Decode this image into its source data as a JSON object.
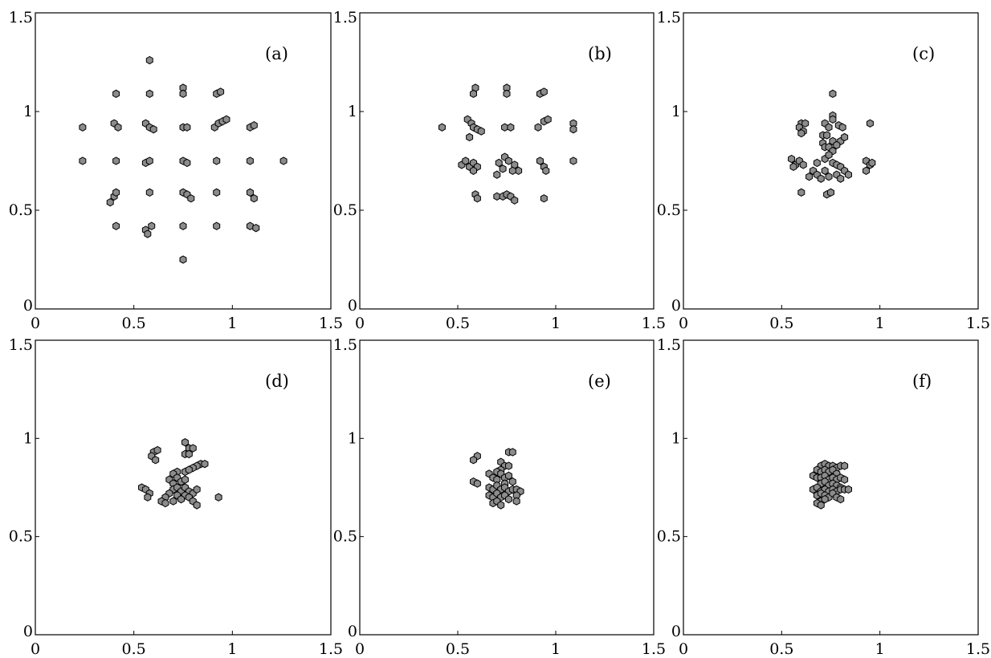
{
  "colors": {
    "marker_fill": "#8c8c8c",
    "marker_edge": "#000000",
    "frame": "#000000",
    "background": "#ffffff"
  },
  "chart_data": [
    {
      "type": "scatter",
      "panel_label": "(a)",
      "xlim": [
        0,
        1.5
      ],
      "ylim": [
        0,
        1.5
      ],
      "xticks": [
        "0",
        "0.5",
        "1",
        "1.5"
      ],
      "yticks": [
        "0",
        "0.5",
        "1",
        "1.5"
      ],
      "grid": false,
      "points": [
        [
          0.58,
          1.26
        ],
        [
          0.41,
          1.09
        ],
        [
          0.58,
          1.09
        ],
        [
          0.75,
          1.12
        ],
        [
          0.75,
          1.09
        ],
        [
          0.92,
          1.09
        ],
        [
          0.94,
          1.1
        ],
        [
          0.24,
          0.92
        ],
        [
          0.4,
          0.94
        ],
        [
          0.42,
          0.92
        ],
        [
          0.56,
          0.94
        ],
        [
          0.58,
          0.92
        ],
        [
          0.6,
          0.91
        ],
        [
          0.75,
          0.92
        ],
        [
          0.77,
          0.92
        ],
        [
          0.91,
          0.92
        ],
        [
          0.93,
          0.94
        ],
        [
          0.95,
          0.95
        ],
        [
          0.97,
          0.96
        ],
        [
          1.09,
          0.92
        ],
        [
          1.11,
          0.93
        ],
        [
          0.24,
          0.75
        ],
        [
          0.41,
          0.75
        ],
        [
          0.56,
          0.74
        ],
        [
          0.58,
          0.75
        ],
        [
          0.75,
          0.75
        ],
        [
          0.77,
          0.74
        ],
        [
          0.92,
          0.75
        ],
        [
          1.09,
          0.75
        ],
        [
          1.26,
          0.75
        ],
        [
          0.38,
          0.54
        ],
        [
          0.4,
          0.57
        ],
        [
          0.41,
          0.59
        ],
        [
          0.58,
          0.59
        ],
        [
          0.75,
          0.59
        ],
        [
          0.77,
          0.58
        ],
        [
          0.79,
          0.56
        ],
        [
          0.92,
          0.59
        ],
        [
          1.09,
          0.59
        ],
        [
          1.11,
          0.56
        ],
        [
          0.41,
          0.42
        ],
        [
          0.56,
          0.4
        ],
        [
          0.57,
          0.38
        ],
        [
          0.59,
          0.42
        ],
        [
          0.75,
          0.42
        ],
        [
          0.92,
          0.42
        ],
        [
          1.09,
          0.42
        ],
        [
          1.12,
          0.41
        ],
        [
          0.75,
          0.25
        ]
      ]
    },
    {
      "type": "scatter",
      "panel_label": "(b)",
      "xlim": [
        0,
        1.5
      ],
      "ylim": [
        0,
        1.5
      ],
      "xticks": [
        "0",
        "0.5",
        "1",
        "1.5"
      ],
      "yticks": [
        "0",
        "0.5",
        "1",
        "1.5"
      ],
      "grid": false,
      "points": [
        [
          0.59,
          1.12
        ],
        [
          0.58,
          1.09
        ],
        [
          0.75,
          1.12
        ],
        [
          0.75,
          1.09
        ],
        [
          0.92,
          1.09
        ],
        [
          0.94,
          1.1
        ],
        [
          0.42,
          0.92
        ],
        [
          0.55,
          0.96
        ],
        [
          0.57,
          0.94
        ],
        [
          0.58,
          0.92
        ],
        [
          0.6,
          0.91
        ],
        [
          0.62,
          0.9
        ],
        [
          0.56,
          0.87
        ],
        [
          0.74,
          0.92
        ],
        [
          0.77,
          0.92
        ],
        [
          0.91,
          0.92
        ],
        [
          0.94,
          0.95
        ],
        [
          0.96,
          0.96
        ],
        [
          1.09,
          0.94
        ],
        [
          1.09,
          0.91
        ],
        [
          0.52,
          0.73
        ],
        [
          0.54,
          0.75
        ],
        [
          0.56,
          0.72
        ],
        [
          0.58,
          0.74
        ],
        [
          0.6,
          0.72
        ],
        [
          0.58,
          0.7
        ],
        [
          0.71,
          0.74
        ],
        [
          0.74,
          0.77
        ],
        [
          0.76,
          0.75
        ],
        [
          0.79,
          0.73
        ],
        [
          0.81,
          0.7
        ],
        [
          0.78,
          0.7
        ],
        [
          0.73,
          0.71
        ],
        [
          0.7,
          0.68
        ],
        [
          0.92,
          0.75
        ],
        [
          0.94,
          0.72
        ],
        [
          0.95,
          0.7
        ],
        [
          1.09,
          0.75
        ],
        [
          0.59,
          0.58
        ],
        [
          0.6,
          0.56
        ],
        [
          0.7,
          0.57
        ],
        [
          0.73,
          0.57
        ],
        [
          0.75,
          0.58
        ],
        [
          0.77,
          0.57
        ],
        [
          0.79,
          0.55
        ],
        [
          0.94,
          0.56
        ]
      ]
    },
    {
      "type": "scatter",
      "panel_label": "(c)",
      "xlim": [
        0,
        1.5
      ],
      "ylim": [
        0,
        1.5
      ],
      "xticks": [
        "0",
        "0.5",
        "1",
        "1.5"
      ],
      "yticks": [
        "0",
        "0.5",
        "1",
        "1.5"
      ],
      "grid": false,
      "points": [
        [
          0.76,
          1.09
        ],
        [
          0.6,
          0.94
        ],
        [
          0.62,
          0.94
        ],
        [
          0.59,
          0.92
        ],
        [
          0.61,
          0.9
        ],
        [
          0.6,
          0.89
        ],
        [
          0.76,
          0.98
        ],
        [
          0.76,
          0.96
        ],
        [
          0.72,
          0.94
        ],
        [
          0.74,
          0.92
        ],
        [
          0.79,
          0.93
        ],
        [
          0.81,
          0.92
        ],
        [
          0.95,
          0.94
        ],
        [
          0.71,
          0.88
        ],
        [
          0.73,
          0.88
        ],
        [
          0.76,
          0.85
        ],
        [
          0.8,
          0.85
        ],
        [
          0.82,
          0.87
        ],
        [
          0.71,
          0.84
        ],
        [
          0.72,
          0.82
        ],
        [
          0.74,
          0.82
        ],
        [
          0.76,
          0.8
        ],
        [
          0.78,
          0.83
        ],
        [
          0.55,
          0.76
        ],
        [
          0.57,
          0.73
        ],
        [
          0.59,
          0.75
        ],
        [
          0.61,
          0.73
        ],
        [
          0.56,
          0.72
        ],
        [
          0.68,
          0.74
        ],
        [
          0.72,
          0.76
        ],
        [
          0.74,
          0.78
        ],
        [
          0.76,
          0.74
        ],
        [
          0.78,
          0.73
        ],
        [
          0.8,
          0.72
        ],
        [
          0.82,
          0.7
        ],
        [
          0.84,
          0.68
        ],
        [
          0.78,
          0.68
        ],
        [
          0.8,
          0.66
        ],
        [
          0.66,
          0.7
        ],
        [
          0.68,
          0.68
        ],
        [
          0.7,
          0.66
        ],
        [
          0.72,
          0.7
        ],
        [
          0.74,
          0.67
        ],
        [
          0.64,
          0.67
        ],
        [
          0.93,
          0.75
        ],
        [
          0.95,
          0.73
        ],
        [
          0.93,
          0.7
        ],
        [
          0.96,
          0.74
        ],
        [
          0.6,
          0.59
        ],
        [
          0.73,
          0.58
        ],
        [
          0.75,
          0.59
        ]
      ]
    },
    {
      "type": "scatter",
      "panel_label": "(d)",
      "xlim": [
        0,
        1.5
      ],
      "ylim": [
        0,
        1.5
      ],
      "xticks": [
        "0",
        "0.5",
        "1",
        "1.5"
      ],
      "yticks": [
        "0",
        "0.5",
        "1",
        "1.5"
      ],
      "grid": false,
      "points": [
        [
          0.76,
          0.98
        ],
        [
          0.78,
          0.95
        ],
        [
          0.8,
          0.95
        ],
        [
          0.6,
          0.93
        ],
        [
          0.62,
          0.94
        ],
        [
          0.59,
          0.91
        ],
        [
          0.61,
          0.89
        ],
        [
          0.76,
          0.92
        ],
        [
          0.78,
          0.92
        ],
        [
          0.84,
          0.87
        ],
        [
          0.86,
          0.87
        ],
        [
          0.82,
          0.86
        ],
        [
          0.8,
          0.85
        ],
        [
          0.72,
          0.83
        ],
        [
          0.7,
          0.82
        ],
        [
          0.76,
          0.83
        ],
        [
          0.78,
          0.84
        ],
        [
          0.54,
          0.75
        ],
        [
          0.56,
          0.74
        ],
        [
          0.58,
          0.72
        ],
        [
          0.57,
          0.7
        ],
        [
          0.68,
          0.79
        ],
        [
          0.7,
          0.77
        ],
        [
          0.72,
          0.8
        ],
        [
          0.74,
          0.78
        ],
        [
          0.76,
          0.79
        ],
        [
          0.7,
          0.74
        ],
        [
          0.72,
          0.75
        ],
        [
          0.74,
          0.73
        ],
        [
          0.76,
          0.75
        ],
        [
          0.78,
          0.73
        ],
        [
          0.8,
          0.72
        ],
        [
          0.82,
          0.74
        ],
        [
          0.76,
          0.71
        ],
        [
          0.78,
          0.7
        ],
        [
          0.68,
          0.72
        ],
        [
          0.66,
          0.7
        ],
        [
          0.64,
          0.68
        ],
        [
          0.66,
          0.67
        ],
        [
          0.7,
          0.68
        ],
        [
          0.72,
          0.71
        ],
        [
          0.74,
          0.69
        ],
        [
          0.8,
          0.68
        ],
        [
          0.82,
          0.66
        ],
        [
          0.93,
          0.7
        ]
      ]
    },
    {
      "type": "scatter",
      "panel_label": "(e)",
      "xlim": [
        0,
        1.5
      ],
      "ylim": [
        0,
        1.5
      ],
      "xticks": [
        "0",
        "0.5",
        "1",
        "1.5"
      ],
      "yticks": [
        "0",
        "0.5",
        "1",
        "1.5"
      ],
      "grid": false,
      "points": [
        [
          0.6,
          0.91
        ],
        [
          0.58,
          0.89
        ],
        [
          0.76,
          0.93
        ],
        [
          0.78,
          0.93
        ],
        [
          0.72,
          0.88
        ],
        [
          0.74,
          0.86
        ],
        [
          0.76,
          0.86
        ],
        [
          0.72,
          0.84
        ],
        [
          0.7,
          0.83
        ],
        [
          0.58,
          0.78
        ],
        [
          0.6,
          0.77
        ],
        [
          0.66,
          0.82
        ],
        [
          0.68,
          0.8
        ],
        [
          0.7,
          0.79
        ],
        [
          0.72,
          0.82
        ],
        [
          0.74,
          0.8
        ],
        [
          0.76,
          0.81
        ],
        [
          0.78,
          0.78
        ],
        [
          0.74,
          0.77
        ],
        [
          0.66,
          0.75
        ],
        [
          0.68,
          0.74
        ],
        [
          0.7,
          0.76
        ],
        [
          0.72,
          0.74
        ],
        [
          0.74,
          0.75
        ],
        [
          0.76,
          0.73
        ],
        [
          0.78,
          0.74
        ],
        [
          0.8,
          0.74
        ],
        [
          0.82,
          0.73
        ],
        [
          0.8,
          0.71
        ],
        [
          0.66,
          0.71
        ],
        [
          0.68,
          0.7
        ],
        [
          0.7,
          0.72
        ],
        [
          0.72,
          0.7
        ],
        [
          0.74,
          0.71
        ],
        [
          0.76,
          0.69
        ],
        [
          0.68,
          0.67
        ],
        [
          0.7,
          0.68
        ],
        [
          0.72,
          0.66
        ],
        [
          0.8,
          0.68
        ]
      ]
    },
    {
      "type": "scatter",
      "panel_label": "(f)",
      "xlim": [
        0,
        1.5
      ],
      "ylim": [
        0,
        1.5
      ],
      "xticks": [
        "0",
        "0.5",
        "1",
        "1.5"
      ],
      "yticks": [
        "0",
        "0.5",
        "1",
        "1.5"
      ],
      "grid": false,
      "points": [
        [
          0.7,
          0.86
        ],
        [
          0.72,
          0.87
        ],
        [
          0.74,
          0.86
        ],
        [
          0.76,
          0.86
        ],
        [
          0.78,
          0.85
        ],
        [
          0.8,
          0.86
        ],
        [
          0.82,
          0.86
        ],
        [
          0.68,
          0.84
        ],
        [
          0.7,
          0.83
        ],
        [
          0.72,
          0.84
        ],
        [
          0.74,
          0.83
        ],
        [
          0.76,
          0.84
        ],
        [
          0.78,
          0.82
        ],
        [
          0.66,
          0.81
        ],
        [
          0.68,
          0.8
        ],
        [
          0.7,
          0.8
        ],
        [
          0.72,
          0.81
        ],
        [
          0.74,
          0.79
        ],
        [
          0.76,
          0.8
        ],
        [
          0.78,
          0.79
        ],
        [
          0.8,
          0.8
        ],
        [
          0.82,
          0.79
        ],
        [
          0.7,
          0.77
        ],
        [
          0.72,
          0.78
        ],
        [
          0.74,
          0.76
        ],
        [
          0.76,
          0.77
        ],
        [
          0.78,
          0.76
        ],
        [
          0.8,
          0.75
        ],
        [
          0.66,
          0.74
        ],
        [
          0.68,
          0.75
        ],
        [
          0.7,
          0.73
        ],
        [
          0.72,
          0.74
        ],
        [
          0.74,
          0.73
        ],
        [
          0.76,
          0.74
        ],
        [
          0.78,
          0.73
        ],
        [
          0.8,
          0.74
        ],
        [
          0.82,
          0.74
        ],
        [
          0.84,
          0.74
        ],
        [
          0.68,
          0.71
        ],
        [
          0.7,
          0.72
        ],
        [
          0.72,
          0.71
        ],
        [
          0.74,
          0.7
        ],
        [
          0.76,
          0.72
        ],
        [
          0.78,
          0.7
        ],
        [
          0.7,
          0.68
        ],
        [
          0.72,
          0.69
        ],
        [
          0.68,
          0.67
        ],
        [
          0.7,
          0.66
        ],
        [
          0.8,
          0.69
        ]
      ]
    }
  ]
}
